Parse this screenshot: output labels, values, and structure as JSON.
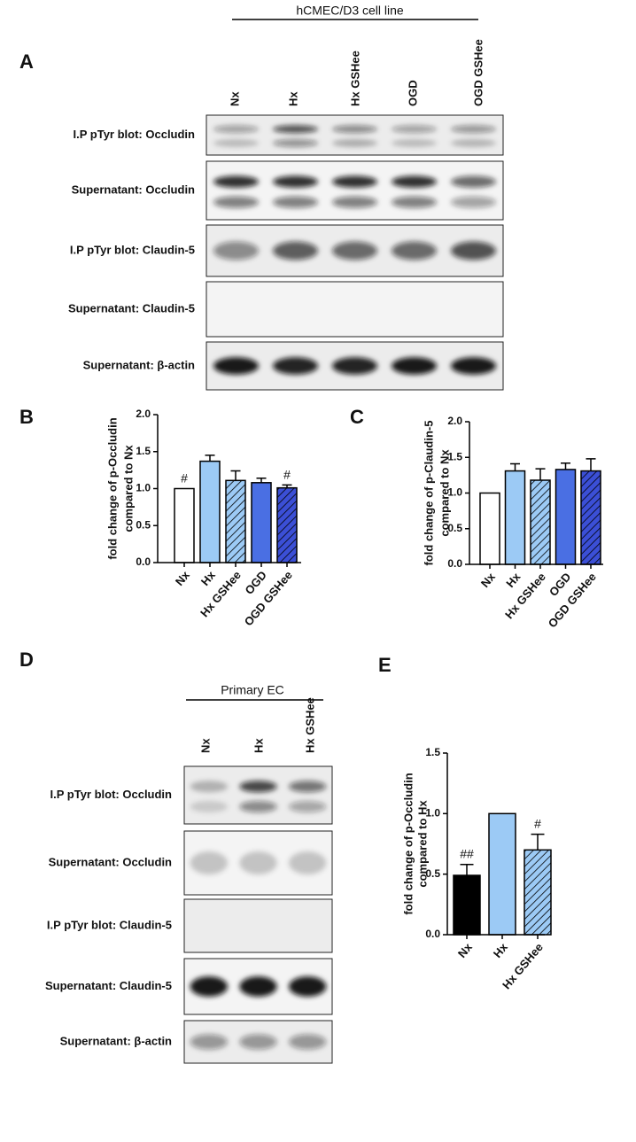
{
  "panel_a": {
    "letter": "A",
    "title": "hCMEC/D3 cell line",
    "columns": [
      "Nx",
      "Hx",
      "Hx GSHee",
      "OGD",
      "OGD GSHee"
    ],
    "rows": [
      "I.P pTyr blot: Occludin",
      "Supernatant: Occludin",
      "I.P pTyr blot: Claudin-5",
      "Supernatant: Claudin-5",
      "Supernatant: β-actin"
    ]
  },
  "panel_d": {
    "letter": "D",
    "title": "Primary EC",
    "columns": [
      "Nx",
      "Hx",
      "Hx GSHee"
    ],
    "rows": [
      "I.P pTyr blot: Occludin",
      "Supernatant: Occludin",
      "I.P pTyr blot: Claudin-5",
      "Supernatant: Claudin-5",
      "Supernatant:  β-actin"
    ]
  },
  "chart_data": [
    {
      "type": "bar",
      "letter": "B",
      "ylabel": [
        "fold change of p-Occludin",
        "compared to Nx"
      ],
      "categories": [
        "Nx",
        "Hx",
        "Hx GSHee",
        "OGD",
        "OGD GSHee"
      ],
      "values": [
        1.0,
        1.37,
        1.11,
        1.08,
        1.01
      ],
      "errors": [
        null,
        0.08,
        0.13,
        0.06,
        0.04
      ],
      "colors": [
        "#ffffff",
        "#9ccaf5",
        "#9ccaf5",
        "#4a6fe3",
        "#3b4fd6"
      ],
      "hatched": [
        false,
        false,
        true,
        false,
        true
      ],
      "ylim": [
        0,
        2
      ],
      "yticks": [
        {
          "value": 0,
          "label": "0.0"
        },
        {
          "value": 0.5,
          "label": "0.5"
        },
        {
          "value": 1,
          "label": "1.0"
        },
        {
          "value": 1.5,
          "label": "1.5"
        },
        {
          "value": 2,
          "label": "2.0"
        }
      ],
      "annotations": [
        {
          "text": "#",
          "category": "Nx"
        },
        {
          "text": "#",
          "category": "OGD GSHee"
        }
      ]
    },
    {
      "type": "bar",
      "letter": "C",
      "ylabel": [
        "fold change of p-Claudin-5",
        "compared to Nx"
      ],
      "categories": [
        "Nx",
        "Hx",
        "Hx GSHee",
        "OGD",
        "OGD GSHee"
      ],
      "values": [
        1.0,
        1.31,
        1.18,
        1.33,
        1.31
      ],
      "errors": [
        null,
        0.1,
        0.16,
        0.09,
        0.17
      ],
      "colors": [
        "#ffffff",
        "#9ccaf5",
        "#9ccaf5",
        "#4a6fe3",
        "#3b4fd6"
      ],
      "hatched": [
        false,
        false,
        true,
        false,
        true
      ],
      "ylim": [
        0,
        2
      ],
      "yticks": [
        {
          "value": 0,
          "label": "0.0"
        },
        {
          "value": 0.5,
          "label": "0.5"
        },
        {
          "value": 1,
          "label": "1.0"
        },
        {
          "value": 1.5,
          "label": "1.5"
        },
        {
          "value": 2,
          "label": "2.0"
        }
      ],
      "annotations": []
    },
    {
      "type": "bar",
      "letter": "E",
      "ylabel": [
        "fold change of p-Occludin",
        "compared to Hx"
      ],
      "categories": [
        "Nx",
        "Hx",
        "Hx GSHee"
      ],
      "values": [
        0.49,
        1.0,
        0.7
      ],
      "errors": [
        0.09,
        null,
        0.13
      ],
      "colors": [
        "#000000",
        "#9ccaf5",
        "#9ccaf5"
      ],
      "hatched": [
        false,
        false,
        true
      ],
      "ylim": [
        0,
        1.5
      ],
      "yticks": [
        {
          "value": 0,
          "label": "0.0"
        },
        {
          "value": 0.5,
          "label": "0.5"
        },
        {
          "value": 1,
          "label": "1.0"
        },
        {
          "value": 1.5,
          "label": "1.5"
        }
      ],
      "annotations": [
        {
          "text": "##",
          "category": "Nx"
        },
        {
          "text": "#",
          "category": "Hx GSHee"
        }
      ]
    }
  ]
}
